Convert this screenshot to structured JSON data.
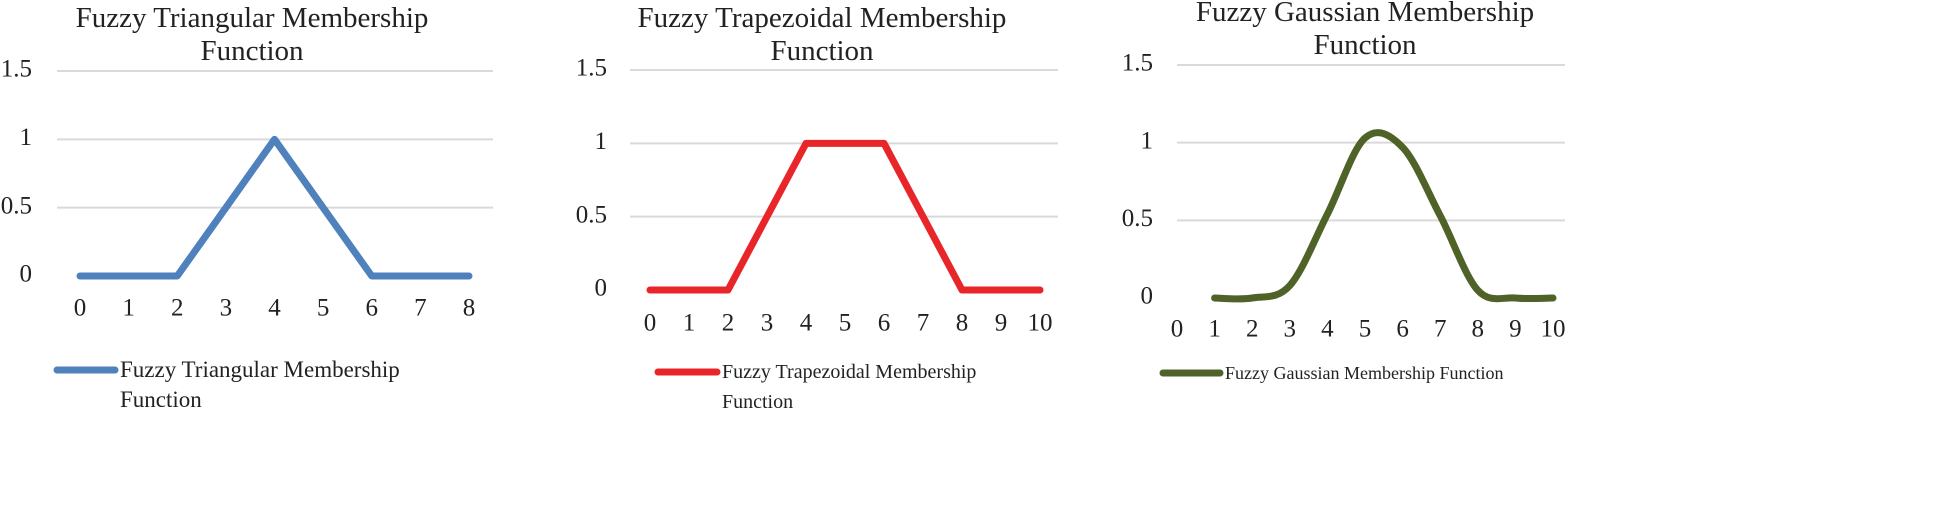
{
  "chart_data": [
    {
      "type": "line",
      "title": "Fuzzy Triangular Membership Function",
      "x": [
        0,
        1,
        2,
        3,
        4,
        5,
        6,
        7,
        8
      ],
      "series": [
        {
          "name": "Fuzzy Triangular Membership Function",
          "color": "#4f81bd",
          "values": [
            0,
            0,
            0,
            0.5,
            1,
            0.5,
            0,
            0,
            0
          ]
        }
      ],
      "xlim": [
        0,
        8
      ],
      "xticks": [
        0,
        1,
        2,
        3,
        4,
        5,
        6,
        7,
        8
      ],
      "ylim": [
        0,
        1.5
      ],
      "yticks": [
        0,
        0.5,
        1,
        1.5
      ],
      "grid": true,
      "legend": "bottom",
      "smooth": false
    },
    {
      "type": "line",
      "title": "Fuzzy Trapezoidal Membership Function",
      "x": [
        0,
        1,
        2,
        3,
        4,
        5,
        6,
        7,
        8,
        9,
        10
      ],
      "series": [
        {
          "name": "Fuzzy Trapezoidal Membership Function",
          "color": "#e8262a",
          "values": [
            0,
            0,
            0,
            0.5,
            1,
            1,
            1,
            0.5,
            0,
            0,
            0
          ]
        }
      ],
      "xlim": [
        0,
        10
      ],
      "xticks": [
        0,
        1,
        2,
        3,
        4,
        5,
        6,
        7,
        8,
        9,
        10
      ],
      "ylim": [
        0,
        1.5
      ],
      "yticks": [
        0,
        0.5,
        1,
        1.5
      ],
      "grid": true,
      "legend": "bottom",
      "smooth": false
    },
    {
      "type": "line",
      "title": "Fuzzy Gaussian Membership Function",
      "x": [
        1,
        2,
        3,
        4,
        5,
        6,
        7,
        8,
        9,
        10
      ],
      "series": [
        {
          "name": "Fuzzy Gaussian Membership Function",
          "color": "#4f6228",
          "values": [
            0,
            0,
            0.08,
            0.54,
            1.03,
            0.97,
            0.53,
            0.05,
            0,
            0
          ]
        }
      ],
      "xlim": [
        0,
        10
      ],
      "xticks": [
        0,
        1,
        2,
        3,
        4,
        5,
        6,
        7,
        8,
        9,
        10
      ],
      "ylim": [
        0,
        1.5
      ],
      "yticks": [
        0,
        0.5,
        1,
        1.5
      ],
      "grid": true,
      "legend": "bottom",
      "smooth": true
    }
  ]
}
